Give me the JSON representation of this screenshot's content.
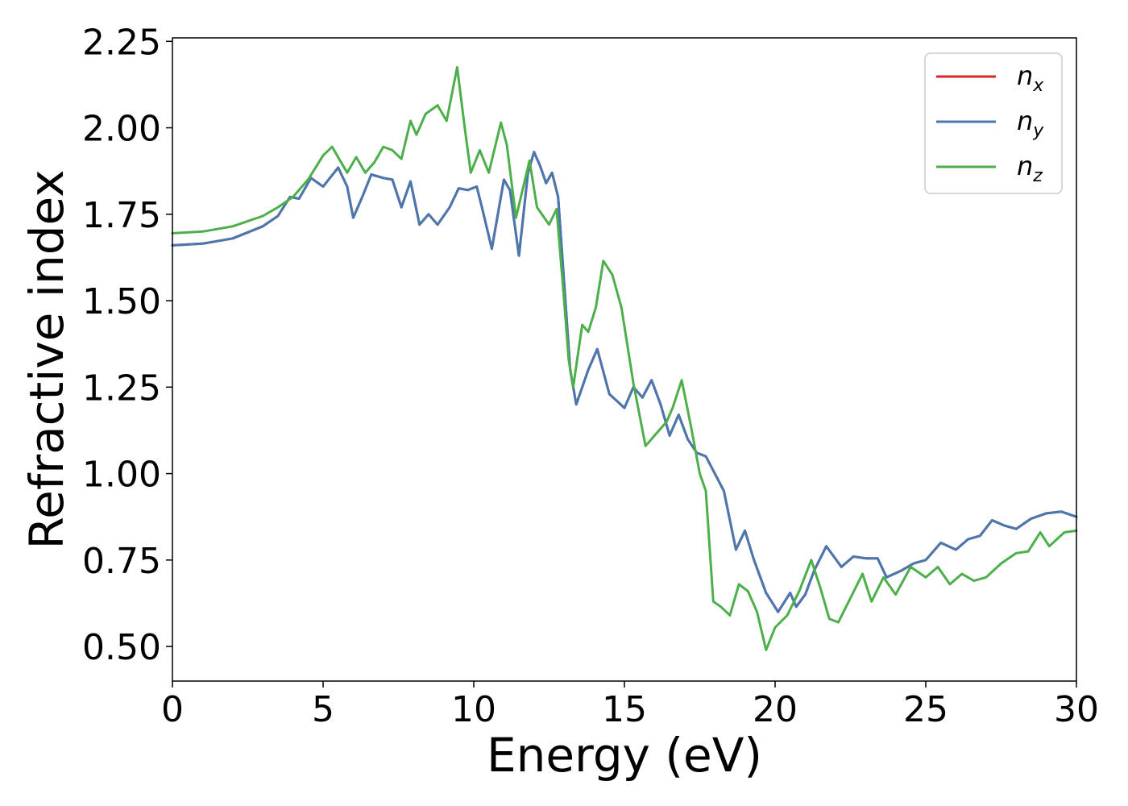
{
  "chart_data": {
    "type": "line",
    "xlabel": "Energy (eV)",
    "ylabel": "Refractive index",
    "xlim": [
      0,
      30
    ],
    "ylim": [
      0.4,
      2.26
    ],
    "x_ticks": [
      "0",
      "5",
      "10",
      "15",
      "20",
      "25",
      "30"
    ],
    "y_ticks": [
      "0.50",
      "0.75",
      "1.00",
      "1.25",
      "1.50",
      "1.75",
      "2.00",
      "2.25"
    ],
    "legend_position": "top-right",
    "grid": false,
    "legend": [
      {
        "base": "n",
        "sub": "x",
        "color": "#d62728"
      },
      {
        "base": "n",
        "sub": "y",
        "color": "#4878b0"
      },
      {
        "base": "n",
        "sub": "z",
        "color": "#4daf4a"
      }
    ],
    "series": [
      {
        "name": "n_x",
        "color": "#d62728",
        "points": [
          [
            0,
            1.66
          ],
          [
            1,
            1.665
          ],
          [
            2,
            1.68
          ],
          [
            3,
            1.715
          ],
          [
            3.5,
            1.745
          ],
          [
            3.9,
            1.8
          ],
          [
            4.2,
            1.795
          ],
          [
            4.6,
            1.855
          ],
          [
            5.0,
            1.83
          ],
          [
            5.5,
            1.885
          ],
          [
            5.8,
            1.83
          ],
          [
            6.0,
            1.74
          ],
          [
            6.3,
            1.8
          ],
          [
            6.6,
            1.865
          ],
          [
            7.0,
            1.855
          ],
          [
            7.3,
            1.85
          ],
          [
            7.6,
            1.77
          ],
          [
            7.9,
            1.845
          ],
          [
            8.2,
            1.72
          ],
          [
            8.5,
            1.75
          ],
          [
            8.8,
            1.72
          ],
          [
            9.2,
            1.77
          ],
          [
            9.5,
            1.825
          ],
          [
            9.8,
            1.82
          ],
          [
            10.1,
            1.83
          ],
          [
            10.3,
            1.76
          ],
          [
            10.6,
            1.65
          ],
          [
            11.0,
            1.85
          ],
          [
            11.2,
            1.82
          ],
          [
            11.5,
            1.63
          ],
          [
            11.8,
            1.87
          ],
          [
            12.0,
            1.93
          ],
          [
            12.2,
            1.89
          ],
          [
            12.4,
            1.84
          ],
          [
            12.6,
            1.87
          ],
          [
            12.8,
            1.8
          ],
          [
            13.0,
            1.55
          ],
          [
            13.2,
            1.3
          ],
          [
            13.4,
            1.2
          ],
          [
            13.8,
            1.3
          ],
          [
            14.1,
            1.36
          ],
          [
            14.5,
            1.23
          ],
          [
            15.0,
            1.19
          ],
          [
            15.3,
            1.25
          ],
          [
            15.6,
            1.22
          ],
          [
            15.9,
            1.27
          ],
          [
            16.2,
            1.2
          ],
          [
            16.5,
            1.11
          ],
          [
            16.8,
            1.17
          ],
          [
            17.1,
            1.1
          ],
          [
            17.4,
            1.06
          ],
          [
            17.7,
            1.05
          ],
          [
            18.0,
            1.0
          ],
          [
            18.3,
            0.95
          ],
          [
            18.7,
            0.78
          ],
          [
            19.0,
            0.835
          ],
          [
            19.3,
            0.75
          ],
          [
            19.7,
            0.655
          ],
          [
            20.1,
            0.6
          ],
          [
            20.5,
            0.655
          ],
          [
            20.7,
            0.615
          ],
          [
            21.0,
            0.65
          ],
          [
            21.3,
            0.72
          ],
          [
            21.7,
            0.79
          ],
          [
            22.2,
            0.73
          ],
          [
            22.6,
            0.76
          ],
          [
            23.0,
            0.755
          ],
          [
            23.4,
            0.755
          ],
          [
            23.7,
            0.7
          ],
          [
            24.2,
            0.72
          ],
          [
            24.6,
            0.74
          ],
          [
            25.0,
            0.75
          ],
          [
            25.5,
            0.8
          ],
          [
            26.0,
            0.78
          ],
          [
            26.4,
            0.81
          ],
          [
            26.8,
            0.82
          ],
          [
            27.2,
            0.865
          ],
          [
            27.6,
            0.85
          ],
          [
            28.0,
            0.84
          ],
          [
            28.5,
            0.87
          ],
          [
            29.0,
            0.885
          ],
          [
            29.5,
            0.89
          ],
          [
            30.0,
            0.875
          ]
        ]
      },
      {
        "name": "n_y",
        "color": "#4878b0",
        "points": [
          [
            0,
            1.66
          ],
          [
            1,
            1.665
          ],
          [
            2,
            1.68
          ],
          [
            3,
            1.715
          ],
          [
            3.5,
            1.745
          ],
          [
            3.9,
            1.8
          ],
          [
            4.2,
            1.795
          ],
          [
            4.6,
            1.855
          ],
          [
            5.0,
            1.83
          ],
          [
            5.5,
            1.885
          ],
          [
            5.8,
            1.83
          ],
          [
            6.0,
            1.74
          ],
          [
            6.3,
            1.8
          ],
          [
            6.6,
            1.865
          ],
          [
            7.0,
            1.855
          ],
          [
            7.3,
            1.85
          ],
          [
            7.6,
            1.77
          ],
          [
            7.9,
            1.845
          ],
          [
            8.2,
            1.72
          ],
          [
            8.5,
            1.75
          ],
          [
            8.8,
            1.72
          ],
          [
            9.2,
            1.77
          ],
          [
            9.5,
            1.825
          ],
          [
            9.8,
            1.82
          ],
          [
            10.1,
            1.83
          ],
          [
            10.3,
            1.76
          ],
          [
            10.6,
            1.65
          ],
          [
            11.0,
            1.85
          ],
          [
            11.2,
            1.82
          ],
          [
            11.5,
            1.63
          ],
          [
            11.8,
            1.87
          ],
          [
            12.0,
            1.93
          ],
          [
            12.2,
            1.89
          ],
          [
            12.4,
            1.84
          ],
          [
            12.6,
            1.87
          ],
          [
            12.8,
            1.8
          ],
          [
            13.0,
            1.55
          ],
          [
            13.2,
            1.3
          ],
          [
            13.4,
            1.2
          ],
          [
            13.8,
            1.3
          ],
          [
            14.1,
            1.36
          ],
          [
            14.5,
            1.23
          ],
          [
            15.0,
            1.19
          ],
          [
            15.3,
            1.25
          ],
          [
            15.6,
            1.22
          ],
          [
            15.9,
            1.27
          ],
          [
            16.2,
            1.2
          ],
          [
            16.5,
            1.11
          ],
          [
            16.8,
            1.17
          ],
          [
            17.1,
            1.1
          ],
          [
            17.4,
            1.06
          ],
          [
            17.7,
            1.05
          ],
          [
            18.0,
            1.0
          ],
          [
            18.3,
            0.95
          ],
          [
            18.7,
            0.78
          ],
          [
            19.0,
            0.835
          ],
          [
            19.3,
            0.75
          ],
          [
            19.7,
            0.655
          ],
          [
            20.1,
            0.6
          ],
          [
            20.5,
            0.655
          ],
          [
            20.7,
            0.615
          ],
          [
            21.0,
            0.65
          ],
          [
            21.3,
            0.72
          ],
          [
            21.7,
            0.79
          ],
          [
            22.2,
            0.73
          ],
          [
            22.6,
            0.76
          ],
          [
            23.0,
            0.755
          ],
          [
            23.4,
            0.755
          ],
          [
            23.7,
            0.7
          ],
          [
            24.2,
            0.72
          ],
          [
            24.6,
            0.74
          ],
          [
            25.0,
            0.75
          ],
          [
            25.5,
            0.8
          ],
          [
            26.0,
            0.78
          ],
          [
            26.4,
            0.81
          ],
          [
            26.8,
            0.82
          ],
          [
            27.2,
            0.865
          ],
          [
            27.6,
            0.85
          ],
          [
            28.0,
            0.84
          ],
          [
            28.5,
            0.87
          ],
          [
            29.0,
            0.885
          ],
          [
            29.5,
            0.89
          ],
          [
            30.0,
            0.875
          ]
        ]
      },
      {
        "name": "n_z",
        "color": "#4daf4a",
        "points": [
          [
            0,
            1.695
          ],
          [
            1,
            1.7
          ],
          [
            2,
            1.715
          ],
          [
            3,
            1.745
          ],
          [
            3.5,
            1.77
          ],
          [
            4.0,
            1.8
          ],
          [
            4.5,
            1.85
          ],
          [
            5.0,
            1.92
          ],
          [
            5.3,
            1.945
          ],
          [
            5.6,
            1.9
          ],
          [
            5.8,
            1.87
          ],
          [
            6.1,
            1.915
          ],
          [
            6.4,
            1.87
          ],
          [
            6.7,
            1.9
          ],
          [
            7.0,
            1.945
          ],
          [
            7.3,
            1.935
          ],
          [
            7.6,
            1.91
          ],
          [
            7.9,
            2.02
          ],
          [
            8.1,
            1.98
          ],
          [
            8.4,
            2.04
          ],
          [
            8.8,
            2.065
          ],
          [
            9.1,
            2.02
          ],
          [
            9.45,
            2.175
          ],
          [
            9.7,
            2.0
          ],
          [
            9.9,
            1.87
          ],
          [
            10.2,
            1.935
          ],
          [
            10.5,
            1.87
          ],
          [
            10.9,
            2.015
          ],
          [
            11.1,
            1.95
          ],
          [
            11.4,
            1.74
          ],
          [
            11.85,
            1.905
          ],
          [
            12.1,
            1.77
          ],
          [
            12.5,
            1.72
          ],
          [
            12.75,
            1.765
          ],
          [
            13.0,
            1.5
          ],
          [
            13.15,
            1.33
          ],
          [
            13.3,
            1.25
          ],
          [
            13.6,
            1.43
          ],
          [
            13.8,
            1.41
          ],
          [
            14.05,
            1.48
          ],
          [
            14.3,
            1.615
          ],
          [
            14.6,
            1.575
          ],
          [
            14.9,
            1.48
          ],
          [
            15.3,
            1.26
          ],
          [
            15.7,
            1.08
          ],
          [
            16.0,
            1.11
          ],
          [
            16.4,
            1.15
          ],
          [
            16.6,
            1.19
          ],
          [
            16.9,
            1.27
          ],
          [
            17.2,
            1.14
          ],
          [
            17.5,
            1.0
          ],
          [
            17.7,
            0.95
          ],
          [
            17.95,
            0.63
          ],
          [
            18.2,
            0.615
          ],
          [
            18.5,
            0.59
          ],
          [
            18.8,
            0.68
          ],
          [
            19.1,
            0.66
          ],
          [
            19.4,
            0.6
          ],
          [
            19.7,
            0.49
          ],
          [
            20.0,
            0.555
          ],
          [
            20.4,
            0.59
          ],
          [
            20.8,
            0.66
          ],
          [
            21.2,
            0.75
          ],
          [
            21.5,
            0.67
          ],
          [
            21.8,
            0.58
          ],
          [
            22.1,
            0.57
          ],
          [
            22.5,
            0.64
          ],
          [
            22.9,
            0.71
          ],
          [
            23.2,
            0.63
          ],
          [
            23.6,
            0.7
          ],
          [
            24.0,
            0.65
          ],
          [
            24.5,
            0.73
          ],
          [
            25.0,
            0.7
          ],
          [
            25.4,
            0.73
          ],
          [
            25.8,
            0.68
          ],
          [
            26.2,
            0.71
          ],
          [
            26.6,
            0.69
          ],
          [
            27.0,
            0.7
          ],
          [
            27.5,
            0.74
          ],
          [
            28.0,
            0.77
          ],
          [
            28.4,
            0.775
          ],
          [
            28.8,
            0.83
          ],
          [
            29.1,
            0.79
          ],
          [
            29.6,
            0.83
          ],
          [
            30.0,
            0.835
          ]
        ]
      }
    ]
  }
}
